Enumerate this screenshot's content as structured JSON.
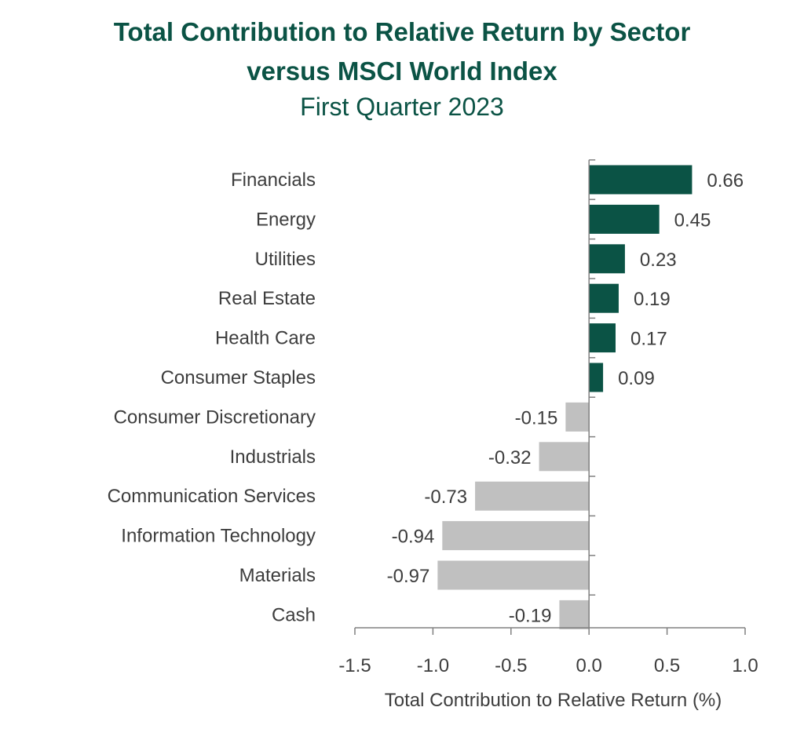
{
  "chart_data": {
    "type": "bar",
    "orientation": "horizontal",
    "title": "Total Contribution to Relative Return by Sector",
    "title_line2": "versus MSCI World Index",
    "subtitle": "First Quarter 2023",
    "xlabel": "Total Contribution to Relative Return (%)",
    "ylabel": "",
    "xlim": [
      -1.5,
      1.0
    ],
    "xticks": [
      "-1.5",
      "-1.0",
      "-0.5",
      "0.0",
      "0.5",
      "1.0"
    ],
    "xtick_values": [
      -1.5,
      -1.0,
      -0.5,
      0.0,
      0.5,
      1.0
    ],
    "categories": [
      "Financials",
      "Energy",
      "Utilities",
      "Real Estate",
      "Health Care",
      "Consumer Staples",
      "Consumer Discretionary",
      "Industrials",
      "Communication Services",
      "Information Technology",
      "Materials",
      "Cash"
    ],
    "values": [
      0.66,
      0.45,
      0.23,
      0.19,
      0.17,
      0.09,
      -0.15,
      -0.32,
      -0.73,
      -0.94,
      -0.97,
      -0.19
    ],
    "value_labels": [
      "0.66",
      "0.45",
      "0.23",
      "0.19",
      "0.17",
      "0.09",
      "-0.15",
      "-0.32",
      "-0.73",
      "-0.94",
      "-0.97",
      "-0.19"
    ],
    "colors": {
      "positive": "#0b5345",
      "negative": "#c0c0c0",
      "axis": "#808080",
      "title": "#0b5345",
      "text": "#3d3d3d"
    },
    "grid": false,
    "legend": "none"
  }
}
